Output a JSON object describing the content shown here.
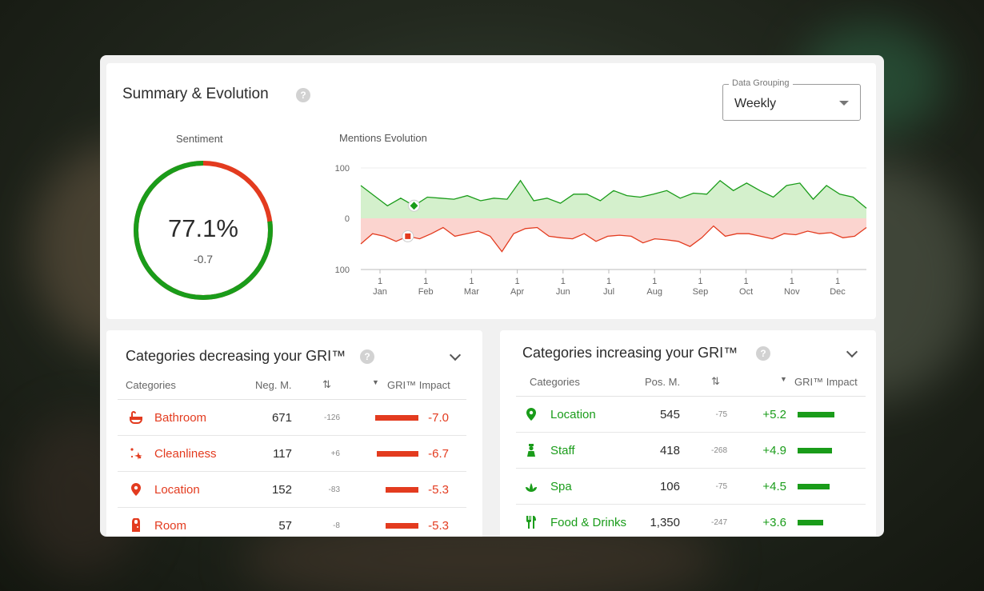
{
  "summary": {
    "title": "Summary  & Evolution",
    "help": "?",
    "grouping_label": "Data Grouping",
    "grouping_value": "Weekly",
    "sentiment_label": "Sentiment",
    "sentiment_value": "77.1%",
    "sentiment_delta": "-0.7",
    "sentiment_fraction": 0.771,
    "mentions_label": "Mentions Evolution"
  },
  "colors": {
    "positive": "#1a9c1a",
    "negative": "#e33b1f",
    "positive_fill": "#d4f0cc",
    "negative_fill": "#fbd4cf"
  },
  "chart_data": {
    "type": "area",
    "x_ticks": [
      {
        "day": "1",
        "month": "Jan"
      },
      {
        "day": "1",
        "month": "Feb"
      },
      {
        "day": "1",
        "month": "Mar"
      },
      {
        "day": "1",
        "month": "Apr"
      },
      {
        "day": "1",
        "month": "Jun"
      },
      {
        "day": "1",
        "month": "Jul"
      },
      {
        "day": "1",
        "month": "Aug"
      },
      {
        "day": "1",
        "month": "Sep"
      },
      {
        "day": "1",
        "month": "Oct"
      },
      {
        "day": "1",
        "month": "Nov"
      },
      {
        "day": "1",
        "month": "Dec"
      }
    ],
    "y_tick_labels": [
      "100",
      "0",
      "100"
    ],
    "ylim": [
      -100,
      100
    ],
    "series": [
      {
        "values": [
          65,
          45,
          25,
          40,
          25,
          42,
          40,
          38,
          45,
          35,
          40,
          38,
          75,
          35,
          40,
          30,
          48,
          48,
          35,
          55,
          45,
          42,
          48,
          55,
          40,
          50,
          48,
          75,
          55,
          70,
          55,
          42,
          65,
          70,
          38,
          65,
          48,
          42,
          20
        ]
      },
      {
        "values": [
          -50,
          -30,
          -35,
          -45,
          -35,
          -40,
          -30,
          -18,
          -35,
          -30,
          -25,
          -35,
          -65,
          -30,
          -20,
          -18,
          -35,
          -38,
          -40,
          -30,
          -45,
          -35,
          -33,
          -35,
          -48,
          -40,
          -42,
          -45,
          -55,
          -38,
          -15,
          -35,
          -30,
          -30,
          -35,
          -40,
          -30,
          -32,
          -25,
          -30,
          -28,
          -38,
          -35,
          -18
        ]
      }
    ],
    "markers": [
      {
        "series": 0,
        "index": 4,
        "shape": "diamond"
      },
      {
        "series": 1,
        "index": 4,
        "shape": "square"
      }
    ]
  },
  "decreasing": {
    "title": "Categories decreasing your GRI™",
    "help": "?",
    "headers": {
      "category": "Categories",
      "count": "Neg. M.",
      "sort": "⇅",
      "impact": "GRI™ Impact"
    },
    "rows": [
      {
        "icon": "bathtub-icon",
        "name": "Bathroom",
        "count": "671",
        "delta": "-126",
        "impact": "-7.0",
        "impact_value": -7.0
      },
      {
        "icon": "sparkle-icon",
        "name": "Cleanliness",
        "count": "117",
        "delta": "+6",
        "impact": "-6.7",
        "impact_value": -6.7
      },
      {
        "icon": "location-pin-icon",
        "name": "Location",
        "count": "152",
        "delta": "-83",
        "impact": "-5.3",
        "impact_value": -5.3
      },
      {
        "icon": "door-icon",
        "name": "Room",
        "count": "57",
        "delta": "-8",
        "impact": "-5.3",
        "impact_value": -5.3
      }
    ]
  },
  "increasing": {
    "title": "Categories increasing your GRI™",
    "help": "?",
    "headers": {
      "category": "Categories",
      "count": "Pos. M.",
      "sort": "⇅",
      "impact": "GRI™ Impact"
    },
    "rows": [
      {
        "icon": "location-pin-icon",
        "name": "Location",
        "count": "545",
        "delta": "-75",
        "impact": "+5.2",
        "impact_value": 5.2
      },
      {
        "icon": "staff-icon",
        "name": "Staff",
        "count": "418",
        "delta": "-268",
        "impact": "+4.9",
        "impact_value": 4.9
      },
      {
        "icon": "spa-lotus-icon",
        "name": "Spa",
        "count": "106",
        "delta": "-75",
        "impact": "+4.5",
        "impact_value": 4.5
      },
      {
        "icon": "fork-knife-icon",
        "name": "Food & Drinks",
        "count": "1,350",
        "delta": "-247",
        "impact": "+3.6",
        "impact_value": 3.6
      }
    ]
  }
}
